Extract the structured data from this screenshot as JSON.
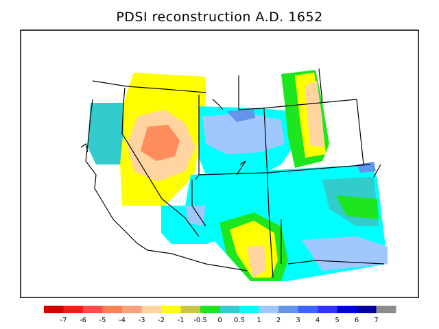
{
  "title": "PDSI reconstruction A.D. 1652",
  "legend": {
    "colors": [
      "#d40000",
      "#ff1a1a",
      "#ff4d4d",
      "#ff7f50",
      "#ffa07a",
      "#ffd4a0",
      "#ffff00",
      "#c8c846",
      "#1ee61e",
      "#33cccc",
      "#00ffff",
      "#a0c8ff",
      "#6495ed",
      "#3c64ff",
      "#3232ff",
      "#0000e6",
      "#0000a0",
      "#8c8c8c"
    ],
    "tick_labels": [
      "-7",
      "-6",
      "-5",
      "-4",
      "-3",
      "-2",
      "-1",
      "-0.5",
      "0",
      "0.5",
      "1",
      "2",
      "3",
      "4",
      "5",
      "6",
      "7"
    ]
  }
}
